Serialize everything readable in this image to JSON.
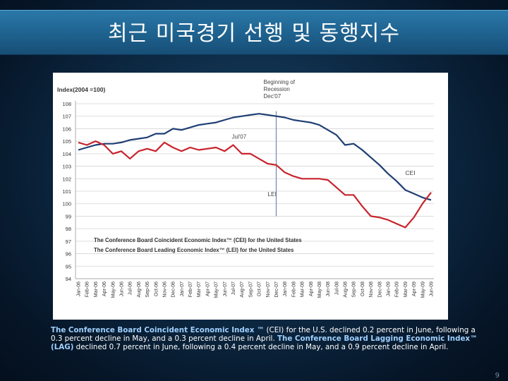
{
  "slide": {
    "title": "최근 미국경기 선행 및 동행지수",
    "page_number": "9"
  },
  "caption": {
    "cei_name": "The Conference Board Coincident Economic Index ™",
    "cei_text": " (CEI) for the U.S. declined 0.2 percent in June, following a 0.3 percent decline in May, and a 0.3 percent decline in April. ",
    "lag_name": "The Conference Board Lagging Economic Index™ (LAG)",
    "lag_text": " declined 0.7 percent in June, following a 0.4 percent decline in May, and a 0.9 percent decline in April."
  },
  "chart_data": {
    "type": "line",
    "ylabel": "Index(2004 =100)",
    "ylim": [
      94,
      108
    ],
    "yticks": [
      94,
      95,
      96,
      97,
      98,
      99,
      100,
      101,
      102,
      103,
      104,
      105,
      106,
      107,
      108
    ],
    "grid": true,
    "categories": [
      "Jan-06",
      "Feb-06",
      "Mar-06",
      "Apr-06",
      "May-06",
      "Jun-06",
      "Jul-06",
      "Aug-06",
      "Sep-06",
      "Oct-06",
      "Nov-06",
      "Dec-06",
      "Jan-07",
      "Feb-07",
      "Mar-07",
      "Apr-07",
      "May-07",
      "Jun-07",
      "Jul-07",
      "Aug-07",
      "Sep-07",
      "Oct-07",
      "Nov-07",
      "Dec-07",
      "Jan-08",
      "Feb-08",
      "Mar-08",
      "Apr-08",
      "May-08",
      "Jun-08",
      "Jul-08",
      "Aug-08",
      "Sep-08",
      "Oct-08",
      "Nov-08",
      "Dec-08",
      "Jan-09",
      "Feb-09",
      "Mar-09",
      "Apr-09",
      "May-09",
      "Jun-09"
    ],
    "series": [
      {
        "name": "CEI",
        "color": "#1f3f73",
        "values": [
          104.3,
          104.5,
          104.7,
          104.8,
          104.8,
          104.9,
          105.1,
          105.2,
          105.3,
          105.6,
          105.6,
          106.0,
          105.9,
          106.1,
          106.3,
          106.4,
          106.5,
          106.7,
          106.9,
          107.0,
          107.1,
          107.2,
          107.1,
          107.0,
          106.9,
          106.7,
          106.6,
          106.5,
          106.3,
          105.9,
          105.5,
          104.7,
          104.8,
          104.3,
          103.7,
          103.1,
          102.4,
          101.8,
          101.1,
          100.8,
          100.5,
          100.3
        ]
      },
      {
        "name": "LEI",
        "color": "#c8232c",
        "values": [
          104.9,
          104.7,
          105.0,
          104.7,
          104.0,
          104.2,
          103.6,
          104.2,
          104.4,
          104.2,
          104.9,
          104.5,
          104.2,
          104.5,
          104.3,
          104.4,
          104.5,
          104.2,
          104.7,
          104.0,
          104.0,
          103.6,
          103.2,
          103.1,
          102.5,
          102.2,
          102.0,
          102.0,
          102.0,
          101.9,
          101.3,
          100.7,
          100.7,
          99.8,
          99.0,
          98.9,
          98.7,
          98.4,
          98.1,
          98.9,
          100.0,
          100.9
        ]
      }
    ],
    "annotations": {
      "recession_line_label_1": "Beginning of",
      "recession_line_label_2": "Recession",
      "recession_line_label_3": "Dec'07",
      "recession_category": "Dec-07",
      "jul07_label": "Jul'07",
      "cei_label": "CEI",
      "lei_label": "LEI"
    },
    "legend": {
      "line1": "The Conference Board Coincident Economic Index™ (CEI) for the United States",
      "line2": "The Conference Board Leading Economic Index™ (LEI) for the United States",
      "placement": "bottom-left"
    }
  }
}
